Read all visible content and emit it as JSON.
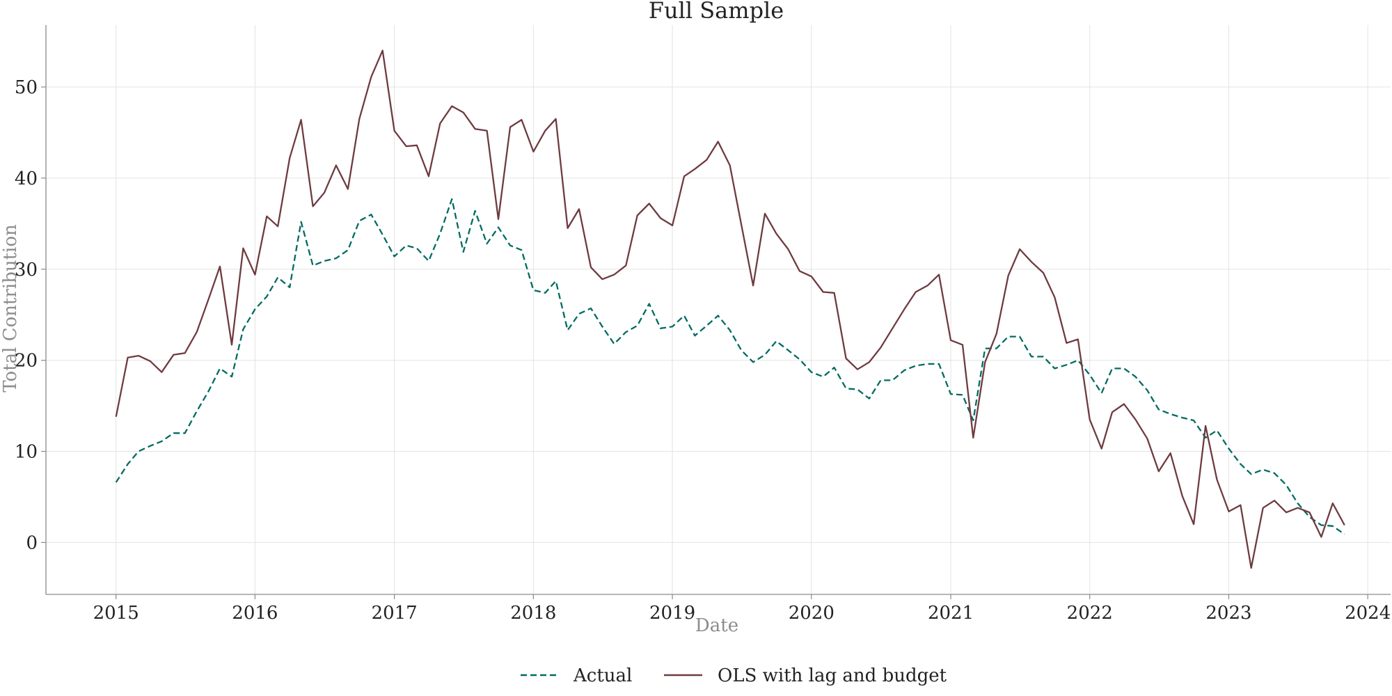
{
  "chart_data": {
    "type": "line",
    "title": "Full Sample",
    "xlabel": "Date",
    "ylabel": "Total Contribution",
    "xlim": [
      "2014-07-01",
      "2024-03-01"
    ],
    "ylim": [
      -5.7,
      56.8
    ],
    "x_ticks": [
      "2015",
      "2016",
      "2017",
      "2018",
      "2019",
      "2020",
      "2021",
      "2022",
      "2023",
      "2024"
    ],
    "y_ticks": [
      0,
      10,
      20,
      30,
      40,
      50
    ],
    "grid": true,
    "legend_position": "bottom-center",
    "x": [
      "2015-01-01",
      "2015-02-01",
      "2015-03-01",
      "2015-04-01",
      "2015-05-01",
      "2015-06-01",
      "2015-07-01",
      "2015-08-01",
      "2015-09-01",
      "2015-10-01",
      "2015-11-01",
      "2015-12-01",
      "2016-01-01",
      "2016-02-01",
      "2016-03-01",
      "2016-04-01",
      "2016-05-01",
      "2016-06-01",
      "2016-07-01",
      "2016-08-01",
      "2016-09-01",
      "2016-10-01",
      "2016-11-01",
      "2016-12-01",
      "2017-01-01",
      "2017-02-01",
      "2017-03-01",
      "2017-04-01",
      "2017-05-01",
      "2017-06-01",
      "2017-07-01",
      "2017-08-01",
      "2017-09-01",
      "2017-10-01",
      "2017-11-01",
      "2017-12-01",
      "2018-01-01",
      "2018-02-01",
      "2018-03-01",
      "2018-04-01",
      "2018-05-01",
      "2018-06-01",
      "2018-07-01",
      "2018-08-01",
      "2018-09-01",
      "2018-10-01",
      "2018-11-01",
      "2018-12-01",
      "2019-01-01",
      "2019-02-01",
      "2019-03-01",
      "2019-04-01",
      "2019-05-01",
      "2019-06-01",
      "2019-07-01",
      "2019-08-01",
      "2019-09-01",
      "2019-10-01",
      "2019-11-01",
      "2019-12-01",
      "2020-01-01",
      "2020-02-01",
      "2020-03-01",
      "2020-04-01",
      "2020-05-01",
      "2020-06-01",
      "2020-07-01",
      "2020-08-01",
      "2020-09-01",
      "2020-10-01",
      "2020-11-01",
      "2020-12-01",
      "2021-01-01",
      "2021-02-01",
      "2021-03-01",
      "2021-04-01",
      "2021-05-01",
      "2021-06-01",
      "2021-07-01",
      "2021-08-01",
      "2021-09-01",
      "2021-10-01",
      "2021-11-01",
      "2021-12-01",
      "2022-01-01",
      "2022-02-01",
      "2022-03-01",
      "2022-04-01",
      "2022-05-01",
      "2022-06-01",
      "2022-07-01",
      "2022-08-01",
      "2022-09-01",
      "2022-10-01",
      "2022-11-01",
      "2022-12-01",
      "2023-01-01",
      "2023-02-01",
      "2023-03-01",
      "2023-04-01",
      "2023-05-01",
      "2023-06-01",
      "2023-07-01",
      "2023-08-01",
      "2023-09-01",
      "2023-10-01",
      "2023-11-01"
    ],
    "series": [
      {
        "name": "Actual",
        "color": "#006b62",
        "dash": "dashed",
        "values": [
          6.6,
          8.6,
          10.0,
          10.6,
          11.1,
          12.0,
          12.0,
          14.4,
          16.6,
          19.1,
          18.2,
          23.4,
          25.6,
          27.0,
          29.1,
          28.0,
          35.2,
          30.4,
          30.9,
          31.2,
          32.1,
          35.3,
          36.0,
          33.8,
          31.4,
          32.6,
          32.3,
          30.9,
          33.9,
          37.7,
          31.9,
          36.4,
          32.8,
          34.6,
          32.6,
          32.1,
          27.7,
          27.4,
          28.7,
          23.3,
          25.1,
          25.7,
          23.7,
          21.8,
          23.1,
          23.8,
          26.2,
          23.5,
          23.7,
          24.9,
          22.7,
          23.8,
          24.9,
          23.3,
          21.1,
          19.8,
          20.6,
          22.1,
          21.1,
          20.1,
          18.7,
          18.2,
          19.2,
          16.9,
          16.8,
          15.8,
          17.8,
          17.8,
          18.9,
          19.4,
          19.6,
          19.6,
          16.3,
          16.2,
          13.4,
          21.3,
          21.3,
          22.6,
          22.6,
          20.4,
          20.4,
          19.1,
          19.5,
          20.0,
          18.4,
          16.4,
          19.1,
          19.1,
          18.2,
          16.7,
          14.6,
          14.1,
          13.7,
          13.4,
          11.5,
          12.3,
          10.3,
          8.6,
          7.5,
          8.0,
          7.6,
          6.3,
          4.3,
          2.8,
          1.9,
          1.8,
          0.9
        ]
      },
      {
        "name": "OLS with lag and budget",
        "color": "#6e3b3f",
        "dash": "solid",
        "values": [
          13.8,
          20.3,
          20.5,
          19.9,
          18.7,
          20.6,
          20.8,
          23.1,
          26.7,
          30.3,
          21.7,
          32.3,
          29.4,
          35.8,
          34.7,
          42.2,
          46.4,
          36.9,
          38.4,
          41.4,
          38.8,
          46.5,
          51.1,
          54.0,
          45.2,
          43.5,
          43.6,
          40.2,
          46.0,
          47.9,
          47.2,
          45.4,
          45.2,
          35.5,
          45.6,
          46.4,
          42.9,
          45.2,
          46.5,
          34.5,
          36.6,
          30.2,
          28.9,
          29.4,
          30.4,
          35.9,
          37.2,
          35.6,
          34.8,
          40.2,
          41.0,
          42.0,
          44.0,
          41.4,
          34.9,
          28.2,
          36.1,
          33.9,
          32.2,
          29.8,
          29.2,
          27.5,
          27.4,
          20.2,
          19.0,
          19.8,
          21.4,
          23.5,
          25.6,
          27.5,
          28.2,
          29.4,
          22.2,
          21.7,
          11.5,
          19.8,
          22.9,
          29.3,
          32.2,
          30.8,
          29.6,
          26.9,
          21.9,
          22.3,
          13.5,
          10.3,
          14.3,
          15.2,
          13.5,
          11.4,
          7.8,
          9.8,
          5.1,
          2.0,
          12.8,
          6.9,
          3.4,
          4.1,
          -2.8,
          3.8,
          4.6,
          3.3,
          3.8,
          3.3,
          0.6,
          4.3,
          1.9
        ]
      }
    ]
  }
}
